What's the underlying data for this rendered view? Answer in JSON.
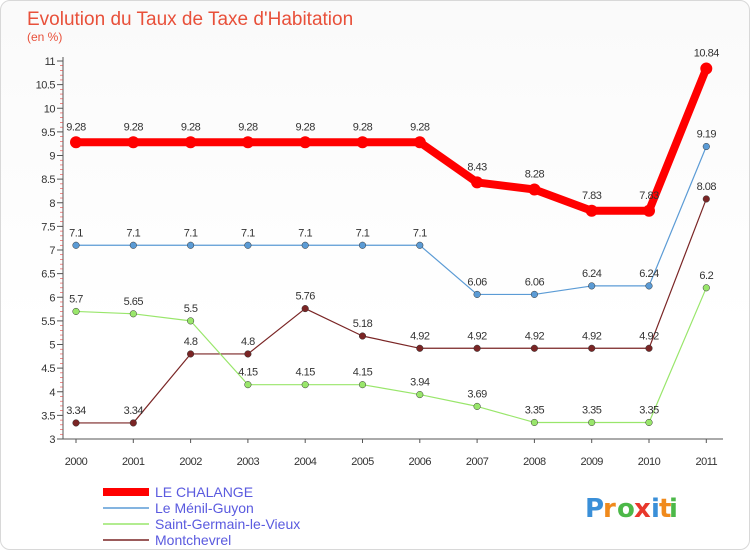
{
  "chart_data": {
    "type": "line",
    "title": "Evolution du Taux de Taxe d'Habitation",
    "subtitle": "(en %)",
    "x": [
      "2000",
      "2001",
      "2002",
      "2003",
      "2004",
      "2005",
      "2006",
      "2007",
      "2008",
      "2009",
      "2010",
      "2011"
    ],
    "yticks": [
      "3",
      "3.5",
      "4",
      "4.5",
      "5",
      "5.5",
      "6",
      "6.5",
      "7",
      "7.5",
      "8",
      "8.5",
      "9",
      "9.5",
      "10",
      "10.5",
      "11"
    ],
    "ylim": [
      3,
      11
    ],
    "grid": false,
    "legend_position": "bottom-left",
    "series": [
      {
        "name": "LE CHALANGE",
        "color": "#ff0000",
        "values": [
          9.28,
          9.28,
          9.28,
          9.28,
          9.28,
          9.28,
          9.28,
          8.43,
          8.28,
          7.83,
          7.83,
          10.84
        ],
        "labels": [
          "9.28",
          "9.28",
          "9.28",
          "9.28",
          "9.28",
          "9.28",
          "9.28",
          "8.43",
          "8.28",
          "7.83",
          "7.83",
          "10.84"
        ]
      },
      {
        "name": "Le Ménil-Guyon",
        "color": "#5b9bd5",
        "values": [
          7.1,
          7.1,
          7.1,
          7.1,
          7.1,
          7.1,
          7.1,
          6.06,
          6.06,
          6.24,
          6.24,
          9.19
        ],
        "labels": [
          "7.1",
          "7.1",
          "7.1",
          "7.1",
          "7.1",
          "7.1",
          "7.1",
          "6.06",
          "6.06",
          "6.24",
          "6.24",
          "9.19"
        ]
      },
      {
        "name": "Saint-Germain-le-Vieux",
        "color": "#99e66b",
        "values": [
          5.7,
          5.65,
          5.5,
          4.15,
          4.15,
          4.15,
          3.94,
          3.69,
          3.35,
          3.35,
          3.35,
          6.2
        ],
        "labels": [
          "5.7",
          "5.65",
          "5.5",
          "4.15",
          "4.15",
          "4.15",
          "3.94",
          "3.69",
          "3.35",
          "3.35",
          "3.35",
          "6.2"
        ]
      },
      {
        "name": "Montchevrel",
        "color": "#7a2525",
        "values": [
          3.34,
          3.34,
          4.8,
          4.8,
          5.76,
          5.18,
          4.92,
          4.92,
          4.92,
          4.92,
          4.92,
          8.08
        ],
        "labels": [
          "3.34",
          "3.34",
          "4.8",
          "4.8",
          "5.76",
          "5.18",
          "4.92",
          "4.92",
          "4.92",
          "4.92",
          "4.92",
          "8.08"
        ]
      }
    ]
  },
  "logo": {
    "letters": [
      "P",
      "r",
      "o",
      "x",
      "i",
      "t",
      "i"
    ],
    "colors": [
      "#3a8fd8",
      "#f08a1c",
      "#4cb848",
      "#e8382c",
      "#3a8fd8",
      "#f08a1c",
      "#4cb848"
    ]
  }
}
